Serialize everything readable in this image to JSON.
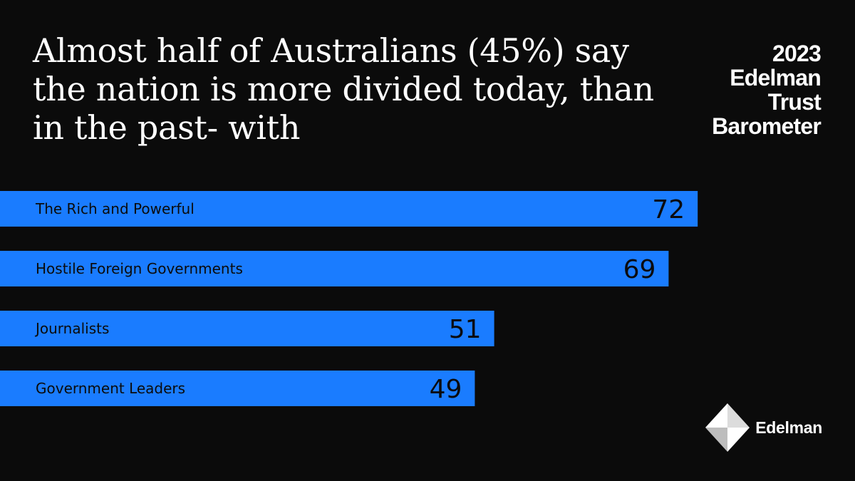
{
  "headline": "Almost half of Australians (45%) say the nation is more divided today, than in the past- with",
  "brand": {
    "lines": [
      "2023",
      "Edelman",
      "Trust",
      "Barometer"
    ],
    "logo_text": "Edelman",
    "logo_icon": "edelman-logo-icon"
  },
  "colors": {
    "background": "#0b0b0b",
    "bar": "#1a7cff",
    "text": "#ffffff",
    "bar_text": "#0b0b0b"
  },
  "chart_data": {
    "type": "bar",
    "orientation": "horizontal",
    "categories": [
      "The Rich and Powerful",
      "Hostile Foreign Governments",
      "Journalists",
      "Government Leaders"
    ],
    "values": [
      72,
      69,
      51,
      49
    ],
    "title": "",
    "xlabel": "",
    "ylabel": "",
    "xlim": [
      0,
      100
    ],
    "grid": false,
    "legend": "none"
  }
}
